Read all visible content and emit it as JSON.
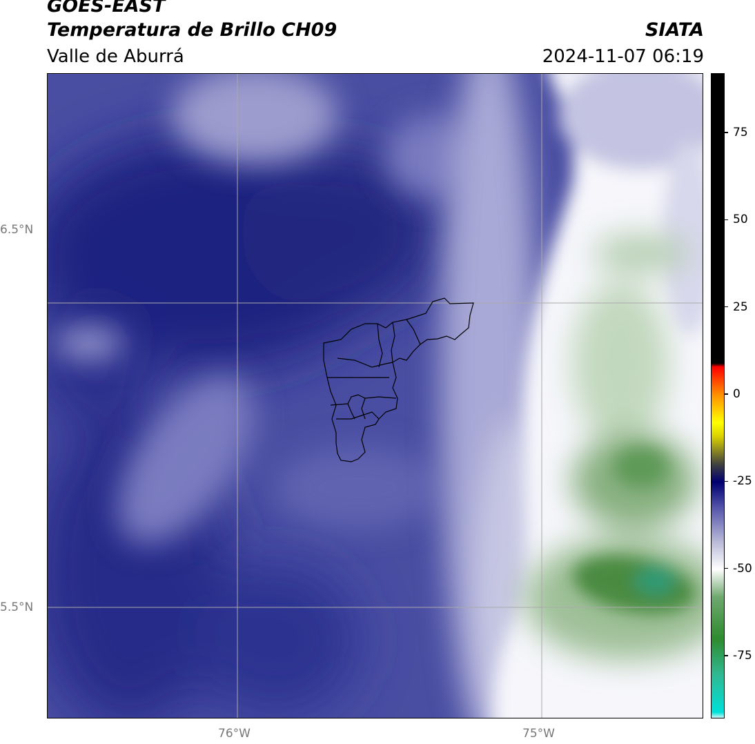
{
  "header": {
    "title_line1": "GOES-EAST",
    "title_line2": "Temperatura de Brillo CH09",
    "region": "Valle de Aburrá",
    "org": "SIATA",
    "timestamp": "2024-11-07 06:19"
  },
  "map": {
    "lat_labels": [
      "6.5°N",
      "5.5°N"
    ],
    "lon_labels": [
      "76°W",
      "75°W"
    ],
    "gridline_color": "#aaaaaa",
    "boundary_color": "#000000"
  },
  "colorbar": {
    "tick_labels": [
      "75",
      "50",
      "25",
      "0",
      "-25",
      "-50",
      "-75"
    ],
    "ticks": [
      75,
      50,
      25,
      0,
      -25,
      -50,
      -75
    ],
    "vmin": -93,
    "vmax": 92,
    "stops": [
      {
        "v": -93,
        "c": "#ffffff"
      },
      {
        "v": -91,
        "c": "#00e0d8"
      },
      {
        "v": -80,
        "c": "#30b890"
      },
      {
        "v": -70,
        "c": "#2e8b2e"
      },
      {
        "v": -58,
        "c": "#6fa86f"
      },
      {
        "v": -50,
        "c": "#ffffff"
      },
      {
        "v": -42,
        "c": "#b8b8d8"
      },
      {
        "v": -32,
        "c": "#5050a8"
      },
      {
        "v": -25,
        "c": "#000070"
      },
      {
        "v": -20,
        "c": "#404040"
      },
      {
        "v": -12,
        "c": "#d8d000"
      },
      {
        "v": -8,
        "c": "#ffff00"
      },
      {
        "v": 0,
        "c": "#ff9000"
      },
      {
        "v": 8,
        "c": "#ff0000"
      },
      {
        "v": 9,
        "c": "#000000"
      },
      {
        "v": 92,
        "c": "#000000"
      }
    ]
  }
}
